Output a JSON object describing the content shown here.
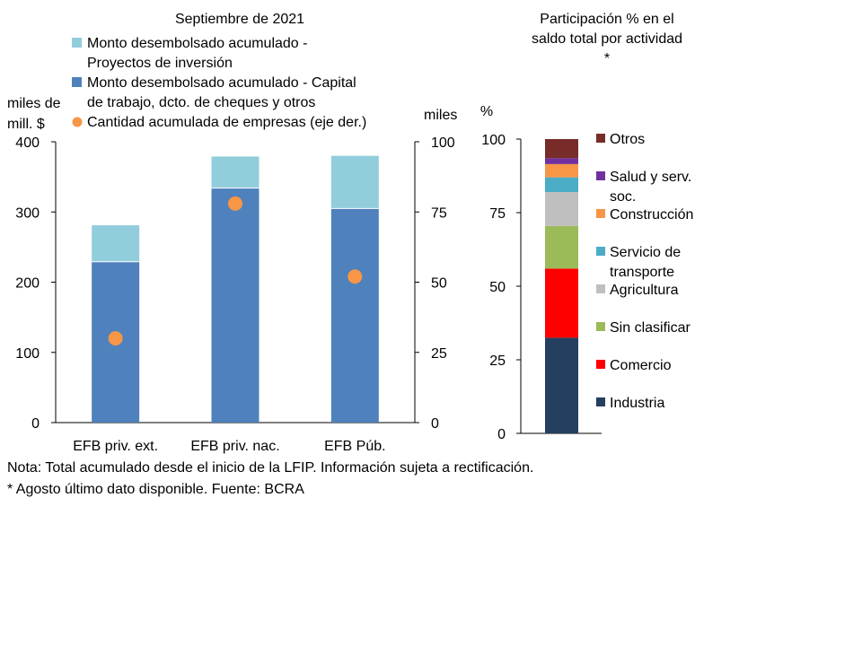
{
  "chart_data": [
    {
      "type": "bar",
      "title": "Septiembre de 2021",
      "categories": [
        "EFB priv. ext.",
        "EFB priv. nac.",
        "EFB Púb."
      ],
      "ylabel_left": [
        "miles de",
        "mill. $"
      ],
      "ylabel_right": "miles",
      "ylim": [
        0,
        400
      ],
      "ylim_right": [
        0,
        100
      ],
      "yticks": [
        "0",
        "100",
        "200",
        "300",
        "400"
      ],
      "yticks_right": [
        "0",
        "25",
        "50",
        "75",
        "100"
      ],
      "stacked": true,
      "series": [
        {
          "name": "Monto desembolsado acumulado - Capital de trabajo, dcto. de cheques y otros",
          "type": "bar",
          "axis": "left",
          "color": "#4F81BD",
          "values": [
            229,
            334,
            305
          ]
        },
        {
          "name": "Monto desembolsado acumulado - Proyectos de inversión",
          "type": "bar",
          "axis": "left",
          "color": "#92CDDC",
          "values": [
            52,
            45,
            75
          ]
        },
        {
          "name": "Cantidad acumulada de empresas (eje der.)",
          "type": "scatter",
          "axis": "right",
          "color": "#F79646",
          "values": [
            30,
            78,
            52
          ]
        }
      ],
      "legend": [
        {
          "lines": [
            "Monto desembolsado acumulado -",
            "Proyectos de inversión"
          ],
          "shape": "square",
          "color": "#92CDDC"
        },
        {
          "lines": [
            "Monto desembolsado acumulado - Capital",
            "de trabajo, dcto. de cheques y otros"
          ],
          "shape": "square",
          "color": "#4F81BD"
        },
        {
          "lines": [
            "Cantidad acumulada de empresas (eje der.)"
          ],
          "shape": "circle",
          "color": "#F79646"
        }
      ]
    },
    {
      "type": "bar",
      "title": [
        "Participación % en el",
        "saldo total por actividad",
        "*"
      ],
      "ylabel": "%",
      "ylim": [
        0,
        100
      ],
      "yticks": [
        "0",
        "25",
        "50",
        "75",
        "100"
      ],
      "stacked": true,
      "segments": [
        {
          "name": "Industria",
          "value": 32.5,
          "color": "#243F60"
        },
        {
          "name": "Comercio",
          "value": 23.5,
          "color": "#FF0000"
        },
        {
          "name": "Sin clasificar",
          "value": 14.5,
          "color": "#9BBB59"
        },
        {
          "name": "Agricultura",
          "value": 11.5,
          "color": "#BFBFBF"
        },
        {
          "name": "Servicio de transporte",
          "value": 5.0,
          "color": "#4BACC6"
        },
        {
          "name": "Construcción",
          "value": 4.5,
          "color": "#F79646"
        },
        {
          "name": "Salud y serv. soc.",
          "value": 2.0,
          "color": "#7030A0"
        },
        {
          "name": "Otros",
          "value": 6.5,
          "color": "#772C2A"
        }
      ],
      "legend": [
        {
          "lines": [
            "Otros"
          ],
          "color": "#772C2A"
        },
        {
          "lines": [
            "Salud y serv.",
            "soc."
          ],
          "color": "#7030A0"
        },
        {
          "lines": [
            "Construcción"
          ],
          "color": "#F79646"
        },
        {
          "lines": [
            "Servicio de",
            "transporte"
          ],
          "color": "#4BACC6"
        },
        {
          "lines": [
            "Agricultura"
          ],
          "color": "#BFBFBF"
        },
        {
          "lines": [
            "Sin clasificar"
          ],
          "color": "#9BBB59"
        },
        {
          "lines": [
            "Comercio"
          ],
          "color": "#FF0000"
        },
        {
          "lines": [
            "Industria"
          ],
          "color": "#243F60"
        }
      ]
    }
  ],
  "notes": [
    "Nota: Total acumulado desde el inicio de la LFIP. Información sujeta a rectificación.",
    "* Agosto último dato disponible. Fuente: BCRA"
  ]
}
